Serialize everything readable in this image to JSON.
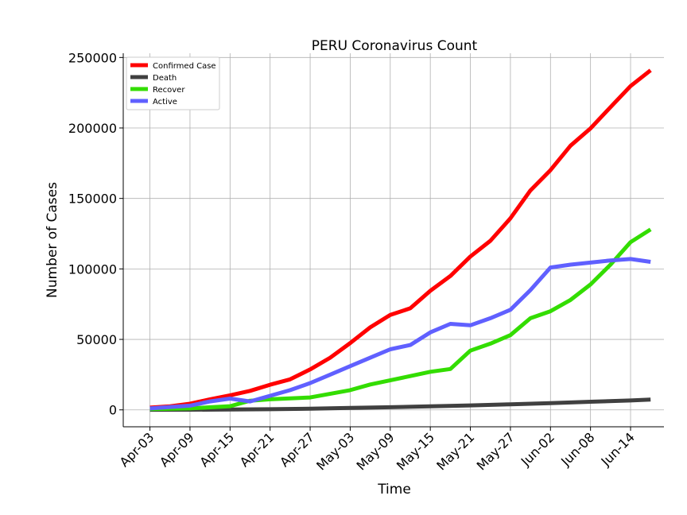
{
  "chart_data": {
    "type": "line",
    "title": "PERU Coronavirus Count",
    "xlabel": "Time",
    "ylabel": "Number of Cases",
    "x_start": "2020-04-03",
    "x_end": "2020-06-17",
    "xlim": [
      "2020-03-30",
      "2020-06-19"
    ],
    "ylim": [
      -12000,
      253000
    ],
    "x_ticks": [
      "Apr-03",
      "Apr-09",
      "Apr-15",
      "Apr-21",
      "Apr-27",
      "May-03",
      "May-09",
      "May-15",
      "May-21",
      "May-27",
      "Jun-02",
      "Jun-08",
      "Jun-14"
    ],
    "x_tick_dates": [
      "2020-04-03",
      "2020-04-09",
      "2020-04-15",
      "2020-04-21",
      "2020-04-27",
      "2020-05-03",
      "2020-05-09",
      "2020-05-15",
      "2020-05-21",
      "2020-05-27",
      "2020-06-02",
      "2020-06-08",
      "2020-06-14"
    ],
    "y_ticks": [
      0,
      50000,
      100000,
      150000,
      200000,
      250000
    ],
    "grid": true,
    "legend_position": "top-left",
    "series": [
      {
        "name": "Confirmed Case",
        "color": "#ff0000",
        "points": [
          [
            "2020-04-03",
            1595
          ],
          [
            "2020-04-06",
            2561
          ],
          [
            "2020-04-09",
            4342
          ],
          [
            "2020-04-12",
            7519
          ],
          [
            "2020-04-15",
            10303
          ],
          [
            "2020-04-18",
            13489
          ],
          [
            "2020-04-21",
            17837
          ],
          [
            "2020-04-24",
            21648
          ],
          [
            "2020-04-27",
            28699
          ],
          [
            "2020-04-30",
            36976
          ],
          [
            "2020-05-03",
            47372
          ],
          [
            "2020-05-06",
            58526
          ],
          [
            "2020-05-09",
            67307
          ],
          [
            "2020-05-12",
            72059
          ],
          [
            "2020-05-15",
            84495
          ],
          [
            "2020-05-18",
            94933
          ],
          [
            "2020-05-21",
            108769
          ],
          [
            "2020-05-24",
            119959
          ],
          [
            "2020-05-27",
            135905
          ],
          [
            "2020-05-30",
            155671
          ],
          [
            "2020-06-02",
            170039
          ],
          [
            "2020-06-05",
            187400
          ],
          [
            "2020-06-08",
            199696
          ],
          [
            "2020-06-11",
            214788
          ],
          [
            "2020-06-14",
            229736
          ],
          [
            "2020-06-17",
            240908
          ]
        ]
      },
      {
        "name": "Death",
        "color": "#404040",
        "points": [
          [
            "2020-04-03",
            61
          ],
          [
            "2020-04-09",
            121
          ],
          [
            "2020-04-15",
            254
          ],
          [
            "2020-04-21",
            484
          ],
          [
            "2020-04-27",
            782
          ],
          [
            "2020-05-03",
            1344
          ],
          [
            "2020-05-09",
            1889
          ],
          [
            "2020-05-15",
            2523
          ],
          [
            "2020-05-21",
            3148
          ],
          [
            "2020-05-27",
            3983
          ],
          [
            "2020-06-02",
            4767
          ],
          [
            "2020-06-08",
            5738
          ],
          [
            "2020-06-14",
            6688
          ],
          [
            "2020-06-17",
            7257
          ]
        ]
      },
      {
        "name": "Recover",
        "color": "#33dd00",
        "points": [
          [
            "2020-04-03",
            500
          ],
          [
            "2020-04-09",
            1000
          ],
          [
            "2020-04-15",
            2600
          ],
          [
            "2020-04-18",
            6500
          ],
          [
            "2020-04-21",
            7500
          ],
          [
            "2020-04-27",
            8800
          ],
          [
            "2020-05-03",
            14000
          ],
          [
            "2020-05-06",
            18000
          ],
          [
            "2020-05-12",
            24000
          ],
          [
            "2020-05-15",
            27000
          ],
          [
            "2020-05-18",
            29000
          ],
          [
            "2020-05-21",
            42000
          ],
          [
            "2020-05-24",
            47000
          ],
          [
            "2020-05-27",
            53000
          ],
          [
            "2020-05-30",
            65000
          ],
          [
            "2020-06-02",
            70000
          ],
          [
            "2020-06-05",
            78000
          ],
          [
            "2020-06-08",
            89000
          ],
          [
            "2020-06-11",
            103000
          ],
          [
            "2020-06-14",
            119000
          ],
          [
            "2020-06-17",
            128000
          ]
        ]
      },
      {
        "name": "Active",
        "color": "#6060ff",
        "points": [
          [
            "2020-04-03",
            1000
          ],
          [
            "2020-04-09",
            3000
          ],
          [
            "2020-04-12",
            6000
          ],
          [
            "2020-04-15",
            8000
          ],
          [
            "2020-04-18",
            6000
          ],
          [
            "2020-04-21",
            10000
          ],
          [
            "2020-04-24",
            14000
          ],
          [
            "2020-04-27",
            19000
          ],
          [
            "2020-04-30",
            25000
          ],
          [
            "2020-05-03",
            31000
          ],
          [
            "2020-05-06",
            37000
          ],
          [
            "2020-05-09",
            43000
          ],
          [
            "2020-05-12",
            46000
          ],
          [
            "2020-05-15",
            55000
          ],
          [
            "2020-05-18",
            61000
          ],
          [
            "2020-05-21",
            60000
          ],
          [
            "2020-05-24",
            65000
          ],
          [
            "2020-05-27",
            71000
          ],
          [
            "2020-05-30",
            85000
          ],
          [
            "2020-06-02",
            101000
          ],
          [
            "2020-06-05",
            103000
          ],
          [
            "2020-06-08",
            104500
          ],
          [
            "2020-06-11",
            106000
          ],
          [
            "2020-06-14",
            107000
          ],
          [
            "2020-06-17",
            105000
          ]
        ]
      }
    ]
  }
}
